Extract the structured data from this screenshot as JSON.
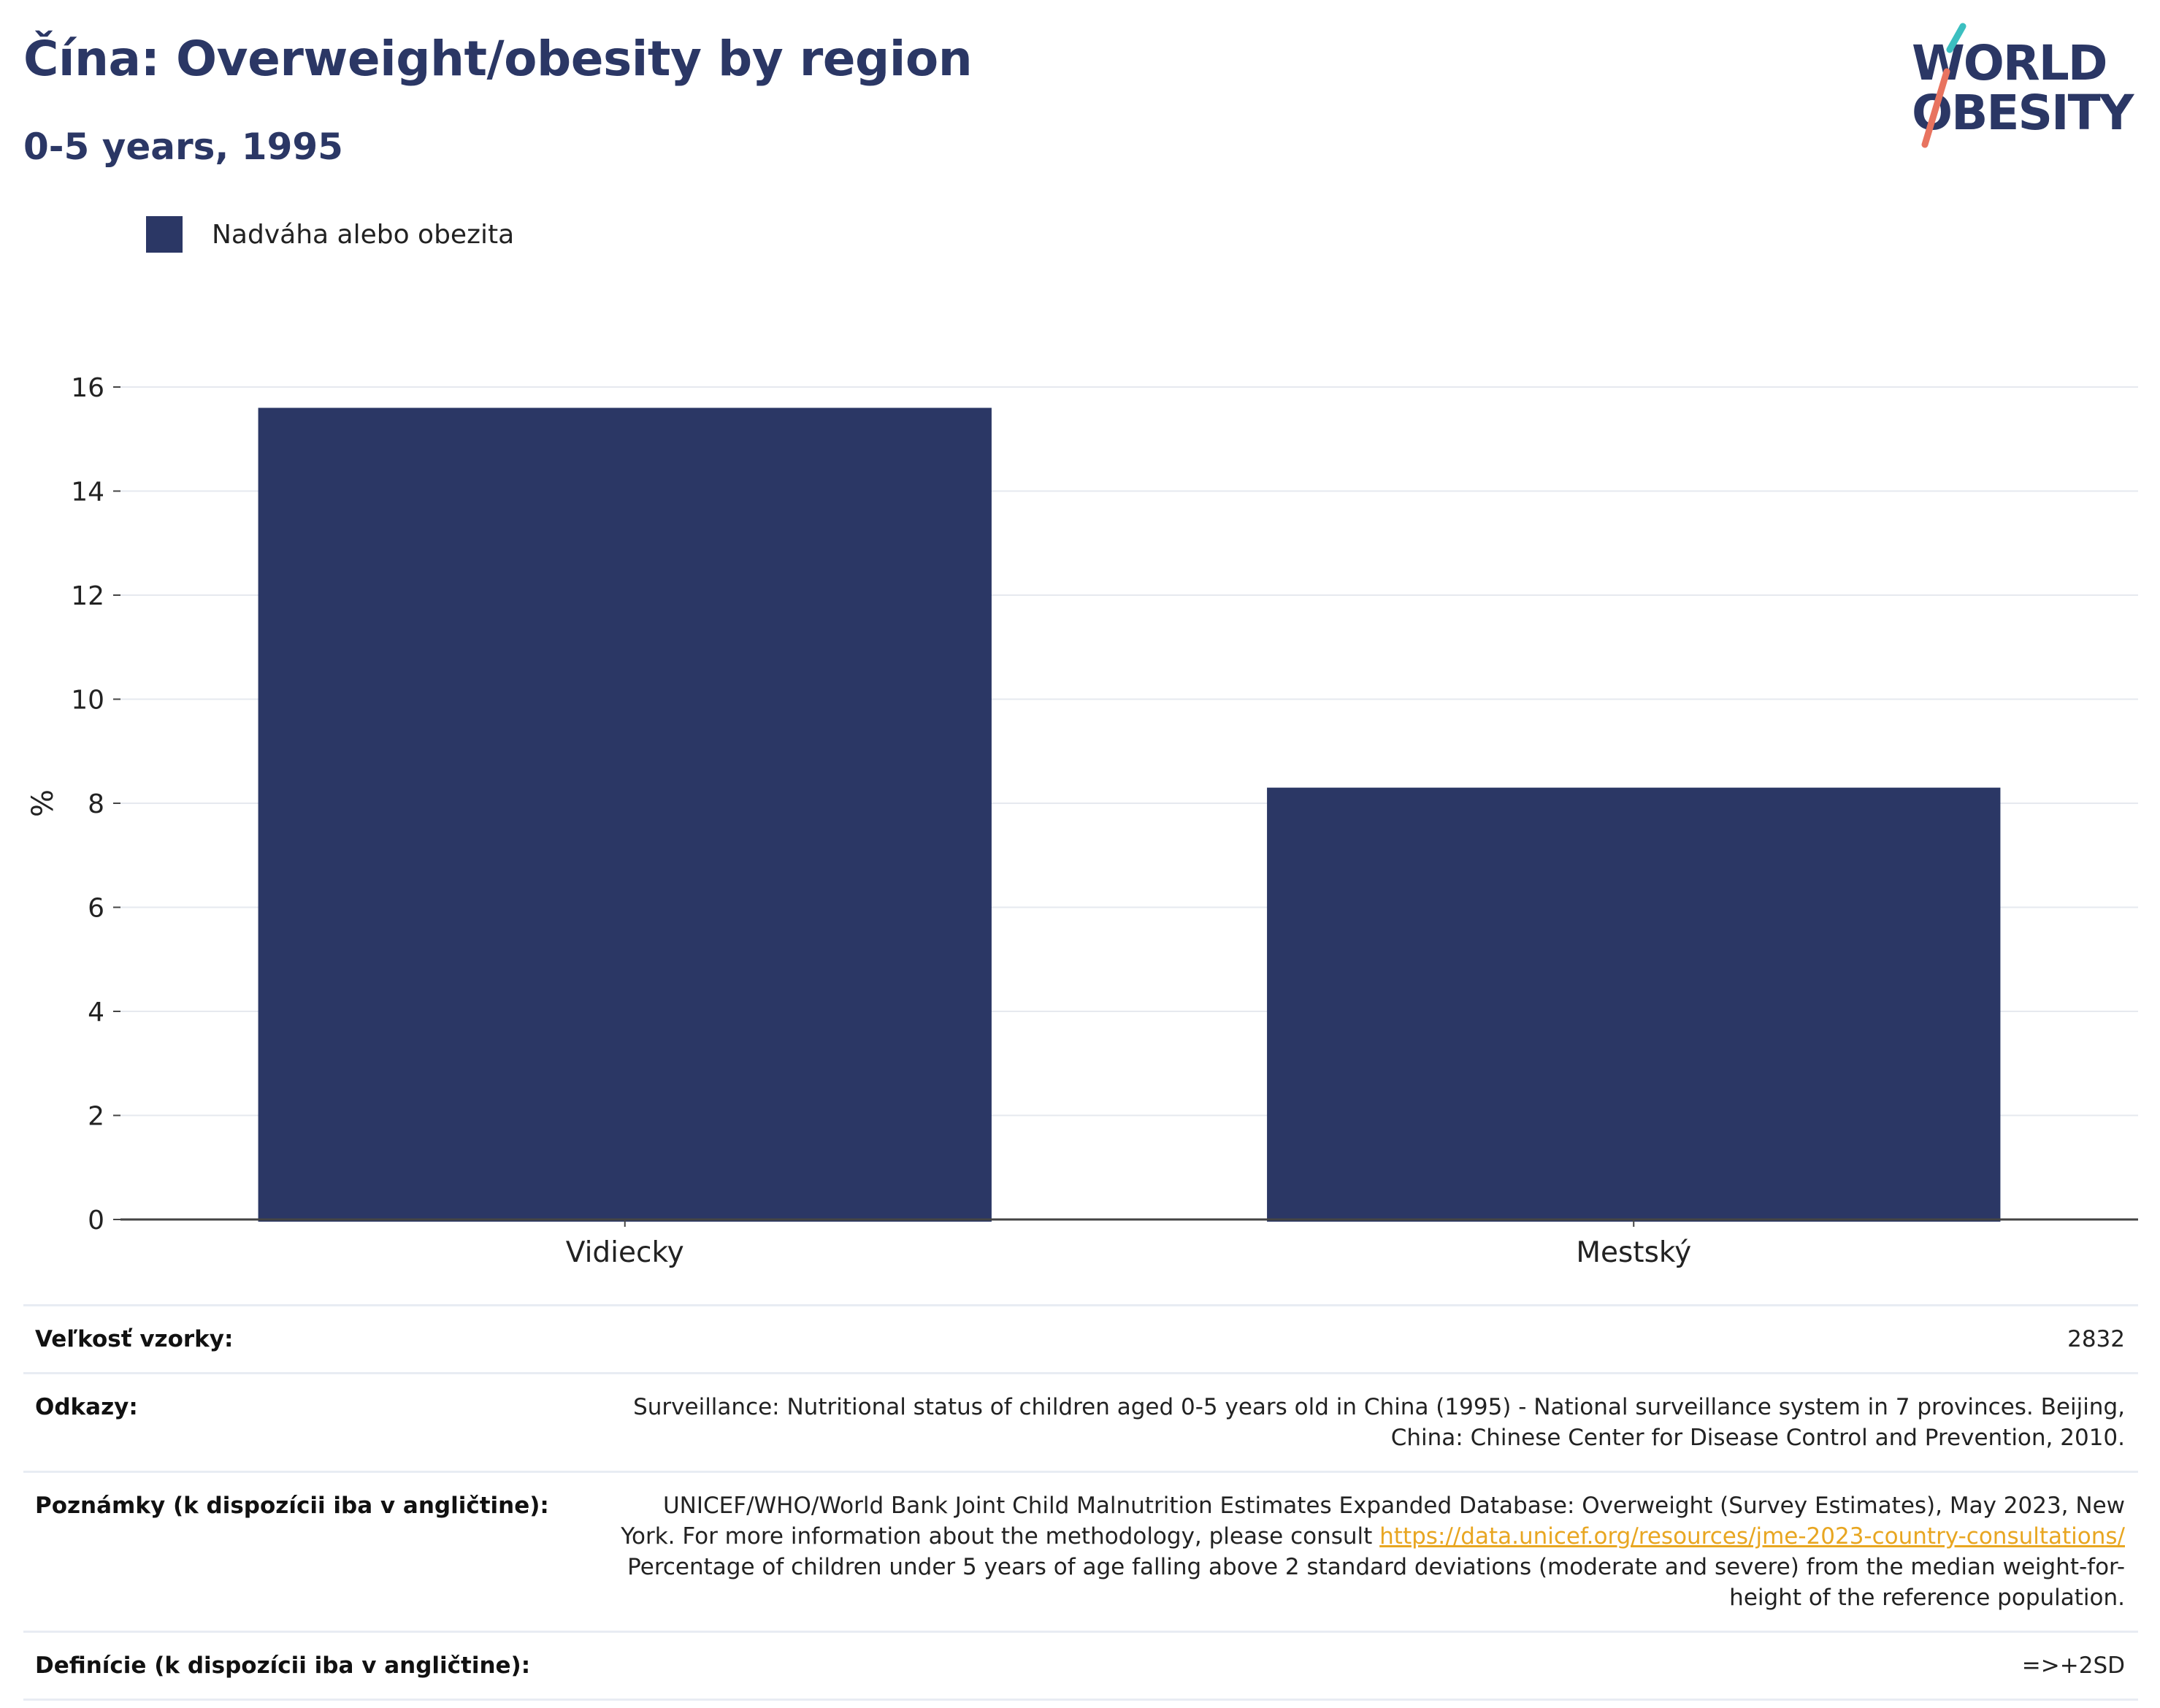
{
  "header": {
    "title": "Čína: Overweight/obesity by region",
    "subtitle": "0-5 years, 1995"
  },
  "logo": {
    "line1": "WORLD",
    "line2": "OBESITY"
  },
  "legend": {
    "label": "Nadváha alebo obezita",
    "color": "#2b3765"
  },
  "chart_data": {
    "type": "bar",
    "categories": [
      "Vidiecky",
      "Mestský"
    ],
    "series": [
      {
        "name": "Nadváha alebo obezita",
        "values": [
          15.6,
          8.3
        ],
        "color": "#2b3765"
      }
    ],
    "ylabel": "%",
    "xlabel": "",
    "ylim": [
      0,
      16
    ],
    "yticks": [
      0,
      2,
      4,
      6,
      8,
      10,
      12,
      14,
      16
    ],
    "grid": true
  },
  "info": {
    "sample_size": {
      "key": "Veľkosť vzorky:",
      "value": "2832"
    },
    "references": {
      "key": "Odkazy:",
      "value": "Surveillance: Nutritional status of children aged 0-5 years old in China (1995) - National surveillance system in 7 provinces. Beijing, China: Chinese Center for Disease Control and Prevention, 2010."
    },
    "notes": {
      "key": "Poznámky (k dispozícii iba v angličtine):",
      "value_before": "UNICEF/WHO/World Bank Joint Child Malnutrition Estimates Expanded Database: Overweight (Survey Estimates), May 2023, New York. For more information about the methodology, please consult",
      "link": "https://data.unicef.org/resources/jme-2023-country-consultations/",
      "value_after": "Percentage of children under 5 years of age falling above 2 standard deviations (moderate and severe) from the median weight-for-height of the reference population."
    },
    "definitions": {
      "key": "Definície (k dispozícii iba v angličtine):",
      "value": "=>+2SD"
    }
  }
}
